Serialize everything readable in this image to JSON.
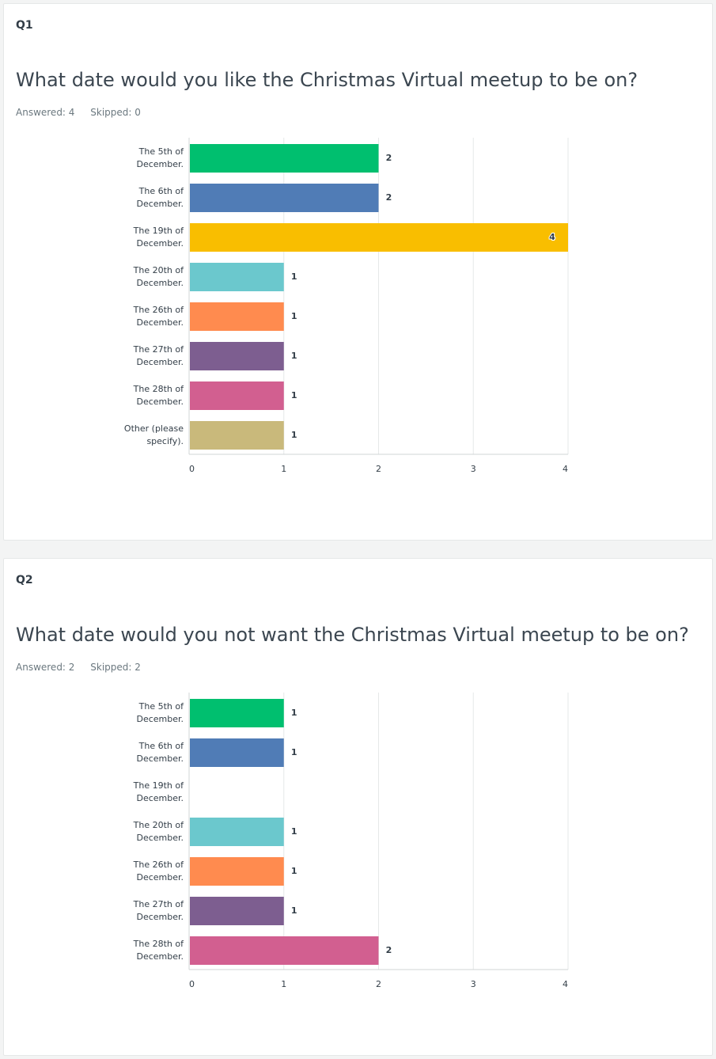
{
  "questions": [
    {
      "number": "Q1",
      "title": "What date would you like the Christmas Virtual meetup to be on?",
      "answered": "Answered: 4",
      "skipped": "Skipped: 0"
    },
    {
      "number": "Q2",
      "title": "What date would you not want the Christmas Virtual meetup to be on?",
      "answered": "Answered: 2",
      "skipped": "Skipped: 2"
    }
  ],
  "chart_data": [
    {
      "type": "bar",
      "orientation": "horizontal",
      "categories": [
        [
          "The 5th of",
          "December."
        ],
        [
          "The 6th of",
          "December."
        ],
        [
          "The 19th of",
          "December."
        ],
        [
          "The 20th of",
          "December."
        ],
        [
          "The 26th of",
          "December."
        ],
        [
          "The 27th of",
          "December."
        ],
        [
          "The 28th of",
          "December."
        ],
        [
          "Other (please",
          "specify)."
        ]
      ],
      "values": [
        2,
        2,
        4,
        1,
        1,
        1,
        1,
        1
      ],
      "colors": [
        "#00bf6f",
        "#507cb6",
        "#f9be00",
        "#6bc8cd",
        "#ff8b4f",
        "#7d5e90",
        "#d25f90",
        "#c9b97b"
      ],
      "xticks": [
        0,
        1,
        2,
        3,
        4
      ],
      "xlim": [
        0,
        4
      ],
      "grid": true
    },
    {
      "type": "bar",
      "orientation": "horizontal",
      "categories": [
        [
          "The 5th of",
          "December."
        ],
        [
          "The 6th of",
          "December."
        ],
        [
          "The 19th of",
          "December."
        ],
        [
          "The 20th of",
          "December."
        ],
        [
          "The 26th of",
          "December."
        ],
        [
          "The 27th of",
          "December."
        ],
        [
          "The 28th of",
          "December."
        ]
      ],
      "values": [
        1,
        1,
        0,
        1,
        1,
        1,
        2
      ],
      "colors": [
        "#00bf6f",
        "#507cb6",
        "#f9be00",
        "#6bc8cd",
        "#ff8b4f",
        "#7d5e90",
        "#d25f90"
      ],
      "xticks": [
        0,
        1,
        2,
        3,
        4
      ],
      "xlim": [
        0,
        4
      ],
      "grid": true
    }
  ]
}
